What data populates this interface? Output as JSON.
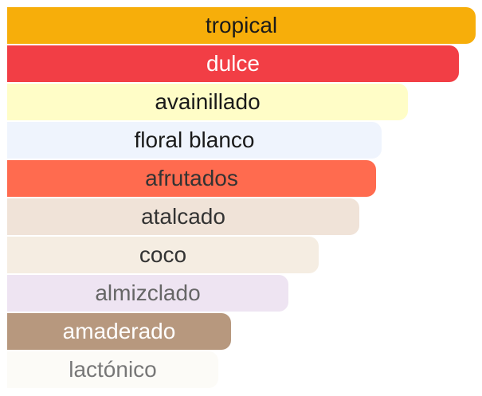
{
  "chart_data": {
    "type": "bar",
    "orientation": "horizontal",
    "categories": [
      "tropical",
      "dulce",
      "avainillado",
      "floral blanco",
      "afrutados",
      "atalcado",
      "coco",
      "almizclado",
      "amaderado",
      "lactónico"
    ],
    "values": [
      100,
      96.4,
      85.6,
      79.9,
      78.8,
      75.2,
      66.5,
      60,
      47.8,
      45.1
    ],
    "xlim": [
      0,
      100
    ],
    "grid": false,
    "colors": [
      "#F7AE0A",
      "#F23E45",
      "#FFFDC7",
      "#EFF4FD",
      "#FF6B4F",
      "#F0E3D8",
      "#F5EDE2",
      "#EEE4F2",
      "#B7987E",
      "#FCFBF7"
    ],
    "label_colors": [
      "#1a1a1a",
      "#ffffff",
      "#1a1a1a",
      "#1a1a1a",
      "#333333",
      "#333333",
      "#333333",
      "#666666",
      "#ffffff",
      "#777777"
    ]
  }
}
